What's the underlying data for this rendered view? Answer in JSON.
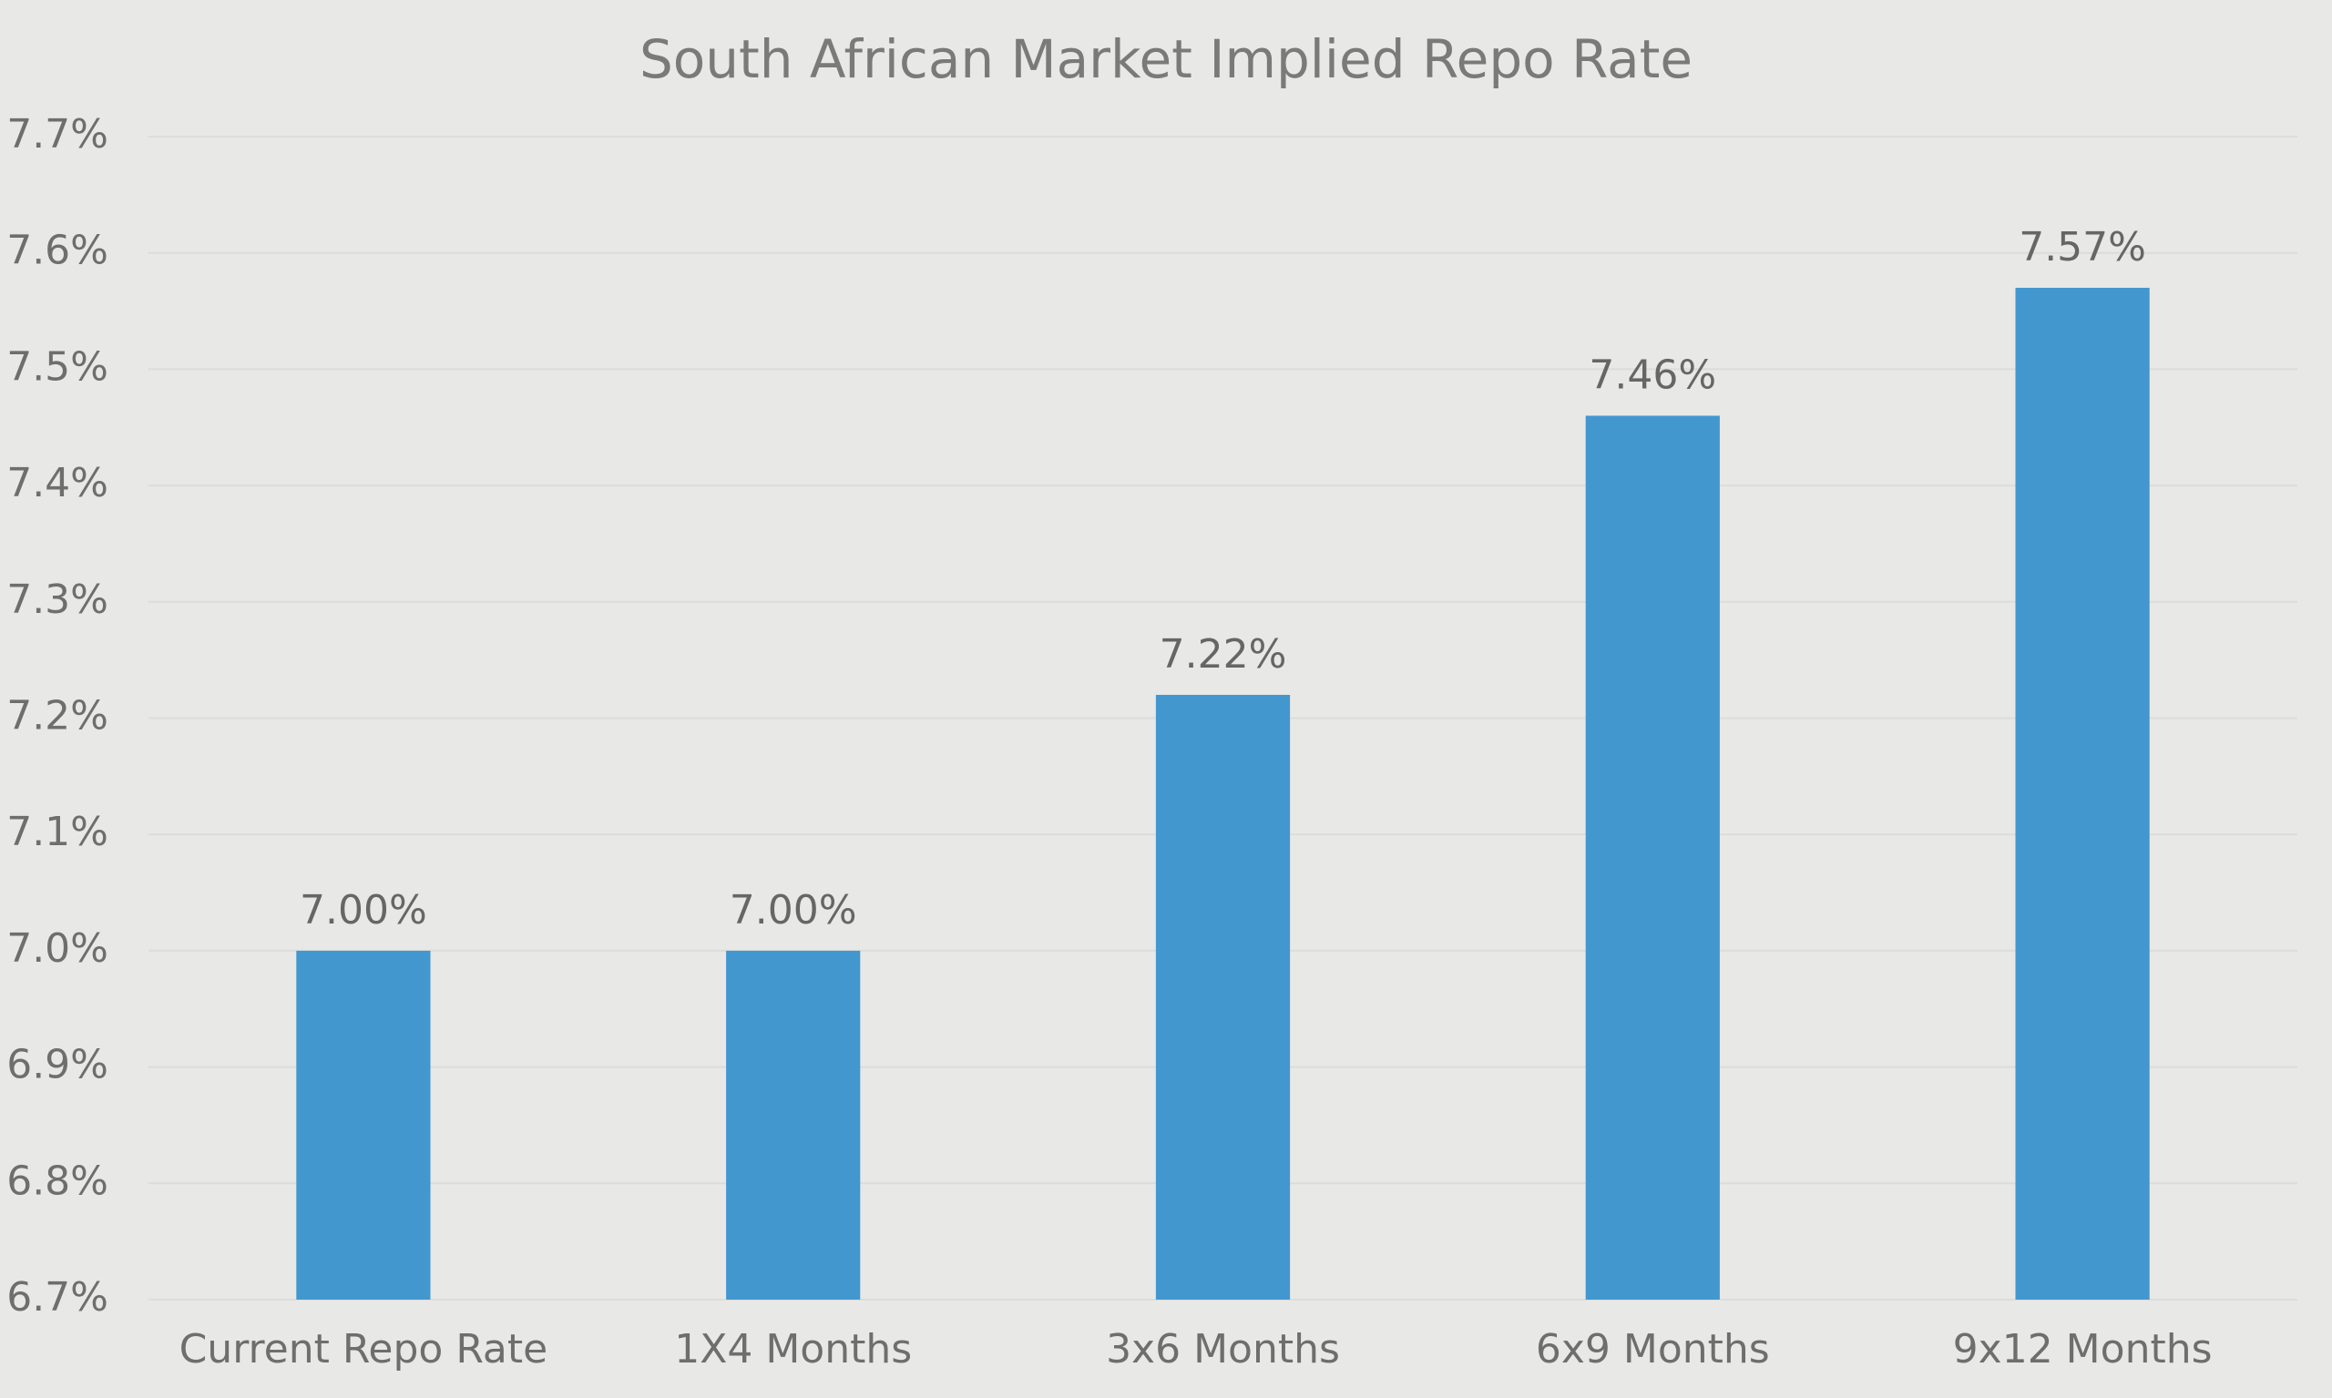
{
  "chart_data": {
    "type": "bar",
    "title": "South African Market Implied Repo Rate",
    "categories": [
      "Current Repo Rate",
      "1X4 Months",
      "3x6 Months",
      "6x9 Months",
      "9x12 Months"
    ],
    "values": [
      7.0,
      7.0,
      7.22,
      7.46,
      7.57
    ],
    "value_labels": [
      "7.00%",
      "7.00%",
      "7.22%",
      "7.46%",
      "7.57%"
    ],
    "color": "#4397cf",
    "ylim": [
      6.7,
      7.7
    ],
    "yticks": [
      {
        "value": 6.7,
        "label": "6.7%"
      },
      {
        "value": 6.8,
        "label": "6.8%"
      },
      {
        "value": 6.9,
        "label": "6.9%"
      },
      {
        "value": 7.0,
        "label": "7.0%"
      },
      {
        "value": 7.1,
        "label": "7.1%"
      },
      {
        "value": 7.2,
        "label": "7.2%"
      },
      {
        "value": 7.3,
        "label": "7.3%"
      },
      {
        "value": 7.4,
        "label": "7.4%"
      },
      {
        "value": 7.5,
        "label": "7.5%"
      },
      {
        "value": 7.6,
        "label": "7.6%"
      },
      {
        "value": 7.7,
        "label": "7.7%"
      }
    ],
    "grid": true
  }
}
